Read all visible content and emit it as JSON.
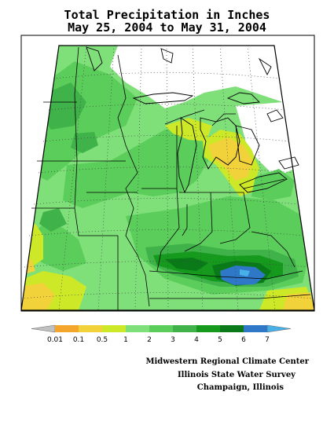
{
  "title": {
    "line1": "Total Precipitation in Inches",
    "line2": "May 25, 2004 to May 31, 2004"
  },
  "legend": {
    "labels": [
      "0.01",
      "0.1",
      "0.5",
      "1",
      "2",
      "3",
      "4",
      "5",
      "6",
      "7"
    ],
    "colors": [
      "#c0c0c0",
      "#f4a52c",
      "#f2d23a",
      "#cde826",
      "#7fe07a",
      "#5acd5a",
      "#3fb24a",
      "#159a1e",
      "#0a7a18",
      "#2f78c8",
      "#48b0e8"
    ]
  },
  "credits": {
    "line1": "Midwestern Regional Climate Center",
    "line2": "Illinois State Water Survey",
    "line3": "Champaign, Illinois"
  }
}
